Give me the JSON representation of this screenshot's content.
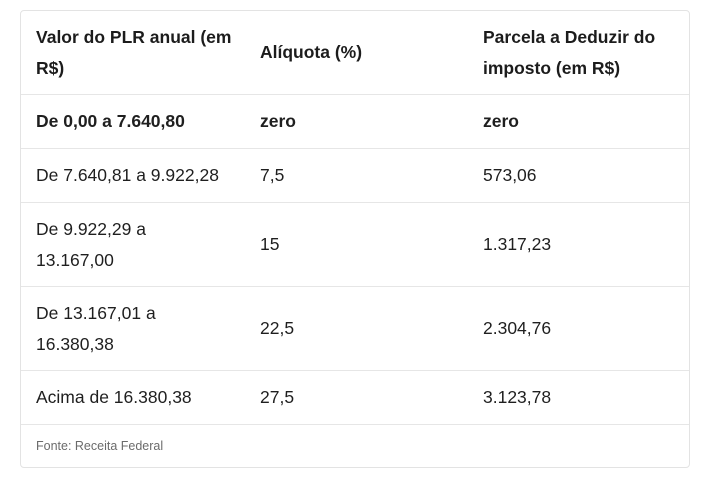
{
  "table": {
    "headers": [
      "Valor do PLR anual (em R$)",
      "Alíquota (%)",
      "Parcela a Deduzir do imposto (em R$)"
    ],
    "rows": [
      [
        "De 0,00 a 7.640,80",
        "zero",
        "zero"
      ],
      [
        "De 7.640,81 a 9.922,28",
        "7,5",
        "573,06"
      ],
      [
        "De 9.922,29 a 13.167,00",
        "15",
        "1.317,23"
      ],
      [
        "De 13.167,01 a 16.380,38",
        "22,5",
        "2.304,76"
      ],
      [
        "Acima de 16.380,38",
        "27,5",
        "3.123,78"
      ]
    ]
  },
  "source": "Fonte: Receita Federal"
}
